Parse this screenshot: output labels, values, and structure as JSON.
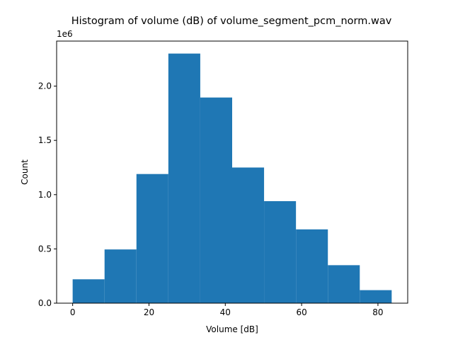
{
  "chart_data": {
    "type": "bar",
    "title": "Histogram of volume (dB) of volume_segment_pcm_norm.wav",
    "xlabel": "Volume [dB]",
    "ylabel": "Count",
    "y_offset_label": "1e6",
    "xlim": [
      -4.2,
      87.8
    ],
    "ylim": [
      0,
      2.415
    ],
    "x_ticks": [
      0,
      20,
      40,
      60,
      80
    ],
    "y_ticks": [
      0.0,
      0.5,
      1.0,
      1.5,
      2.0
    ],
    "y_tick_labels": [
      "0.0",
      "0.5",
      "1.0",
      "1.5",
      "2.0"
    ],
    "grid": false,
    "bar_color": "#1f77b4",
    "bin_edges": [
      0,
      8.36,
      16.72,
      25.08,
      33.44,
      41.8,
      50.16,
      58.52,
      66.88,
      75.24,
      83.6
    ],
    "values": [
      0.22,
      0.495,
      1.19,
      2.3,
      1.895,
      1.25,
      0.94,
      0.68,
      0.35,
      0.12
    ]
  }
}
